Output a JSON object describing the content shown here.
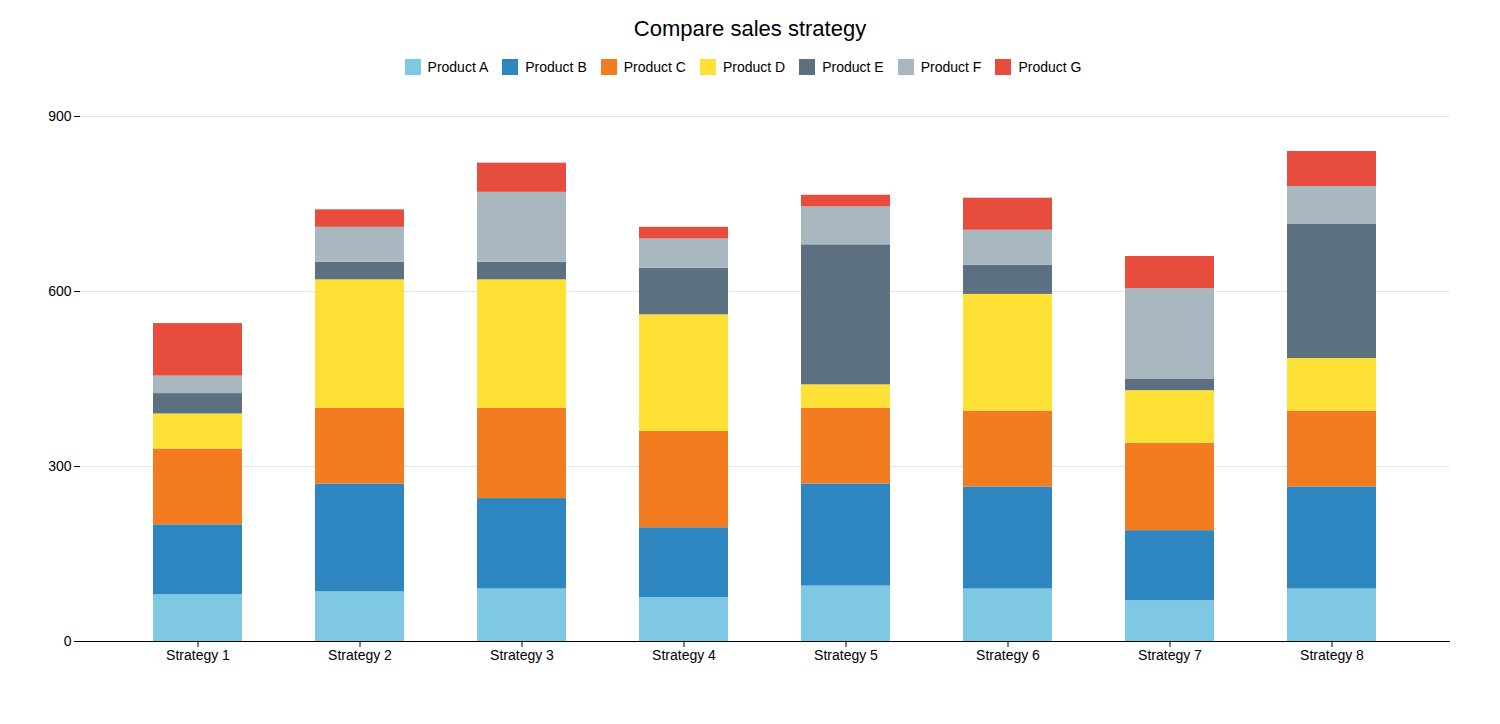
{
  "chart_data": {
    "type": "bar",
    "title": "Compare sales strategy",
    "categories": [
      "Strategy 1",
      "Strategy 2",
      "Strategy 3",
      "Strategy 4",
      "Strategy 5",
      "Strategy 6",
      "Strategy 7",
      "Strategy 8"
    ],
    "series": [
      {
        "name": "Product A",
        "color": "#7EC8E3",
        "values": [
          80,
          85,
          90,
          75,
          95,
          90,
          70,
          90
        ]
      },
      {
        "name": "Product B",
        "color": "#2E86C1",
        "values": [
          120,
          185,
          155,
          120,
          175,
          175,
          120,
          175
        ]
      },
      {
        "name": "Product C",
        "color": "#F47C20",
        "values": [
          130,
          130,
          155,
          165,
          130,
          130,
          150,
          130
        ]
      },
      {
        "name": "Product D",
        "color": "#FFE135",
        "values": [
          60,
          220,
          220,
          200,
          40,
          200,
          90,
          90
        ]
      },
      {
        "name": "Product E",
        "color": "#5D7080",
        "values": [
          35,
          30,
          30,
          80,
          240,
          50,
          20,
          230
        ]
      },
      {
        "name": "Product F",
        "color": "#A9B7C0",
        "values": [
          30,
          60,
          120,
          50,
          65,
          60,
          155,
          65
        ]
      },
      {
        "name": "Product G",
        "color": "#E74C3C",
        "values": [
          90,
          30,
          50,
          20,
          20,
          55,
          55,
          60
        ]
      }
    ],
    "ylim": [
      0,
      900
    ],
    "yticks": [
      0,
      300,
      600,
      900
    ],
    "stacked": true,
    "grid": true,
    "legend": "top"
  }
}
